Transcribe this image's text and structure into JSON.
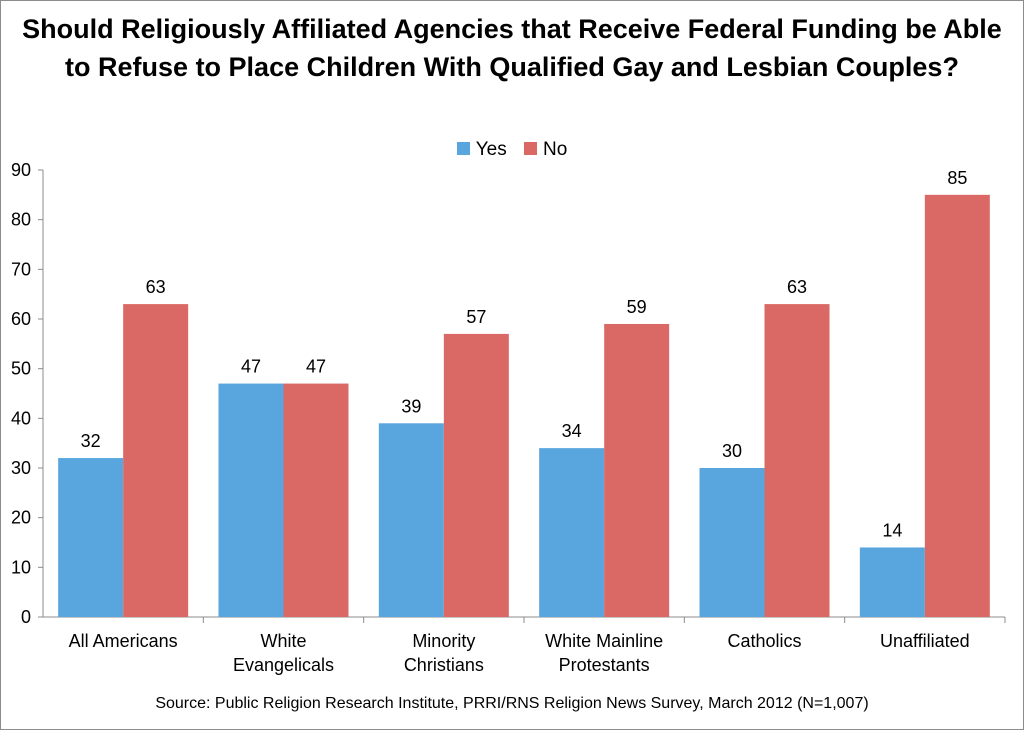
{
  "chart_data": {
    "type": "bar",
    "title": "Should Religiously Affiliated Agencies that Receive Federal Funding be Able to Refuse to Place Children With Qualified Gay and Lesbian Couples?",
    "categories": [
      [
        "All Americans"
      ],
      [
        "White",
        "Evangelicals"
      ],
      [
        "Minority",
        "Christians"
      ],
      [
        "White Mainline",
        "Protestants"
      ],
      [
        "Catholics"
      ],
      [
        "Unaffiliated"
      ]
    ],
    "series": [
      {
        "name": "Yes",
        "color": "#58a6dd",
        "values": [
          32,
          47,
          39,
          34,
          30,
          14
        ]
      },
      {
        "name": "No",
        "color": "#da6965",
        "values": [
          63,
          47,
          57,
          59,
          63,
          85
        ]
      }
    ],
    "ylim": [
      0,
      90
    ],
    "yticks": [
      0,
      10,
      20,
      30,
      40,
      50,
      60,
      70,
      80,
      90
    ],
    "xlabel": "",
    "ylabel": "",
    "legend_position": "top-center",
    "grid": false,
    "source": "Source: Public Religion Research Institute, PRRI/RNS Religion News Survey, March 2012 (N=1,007)"
  }
}
